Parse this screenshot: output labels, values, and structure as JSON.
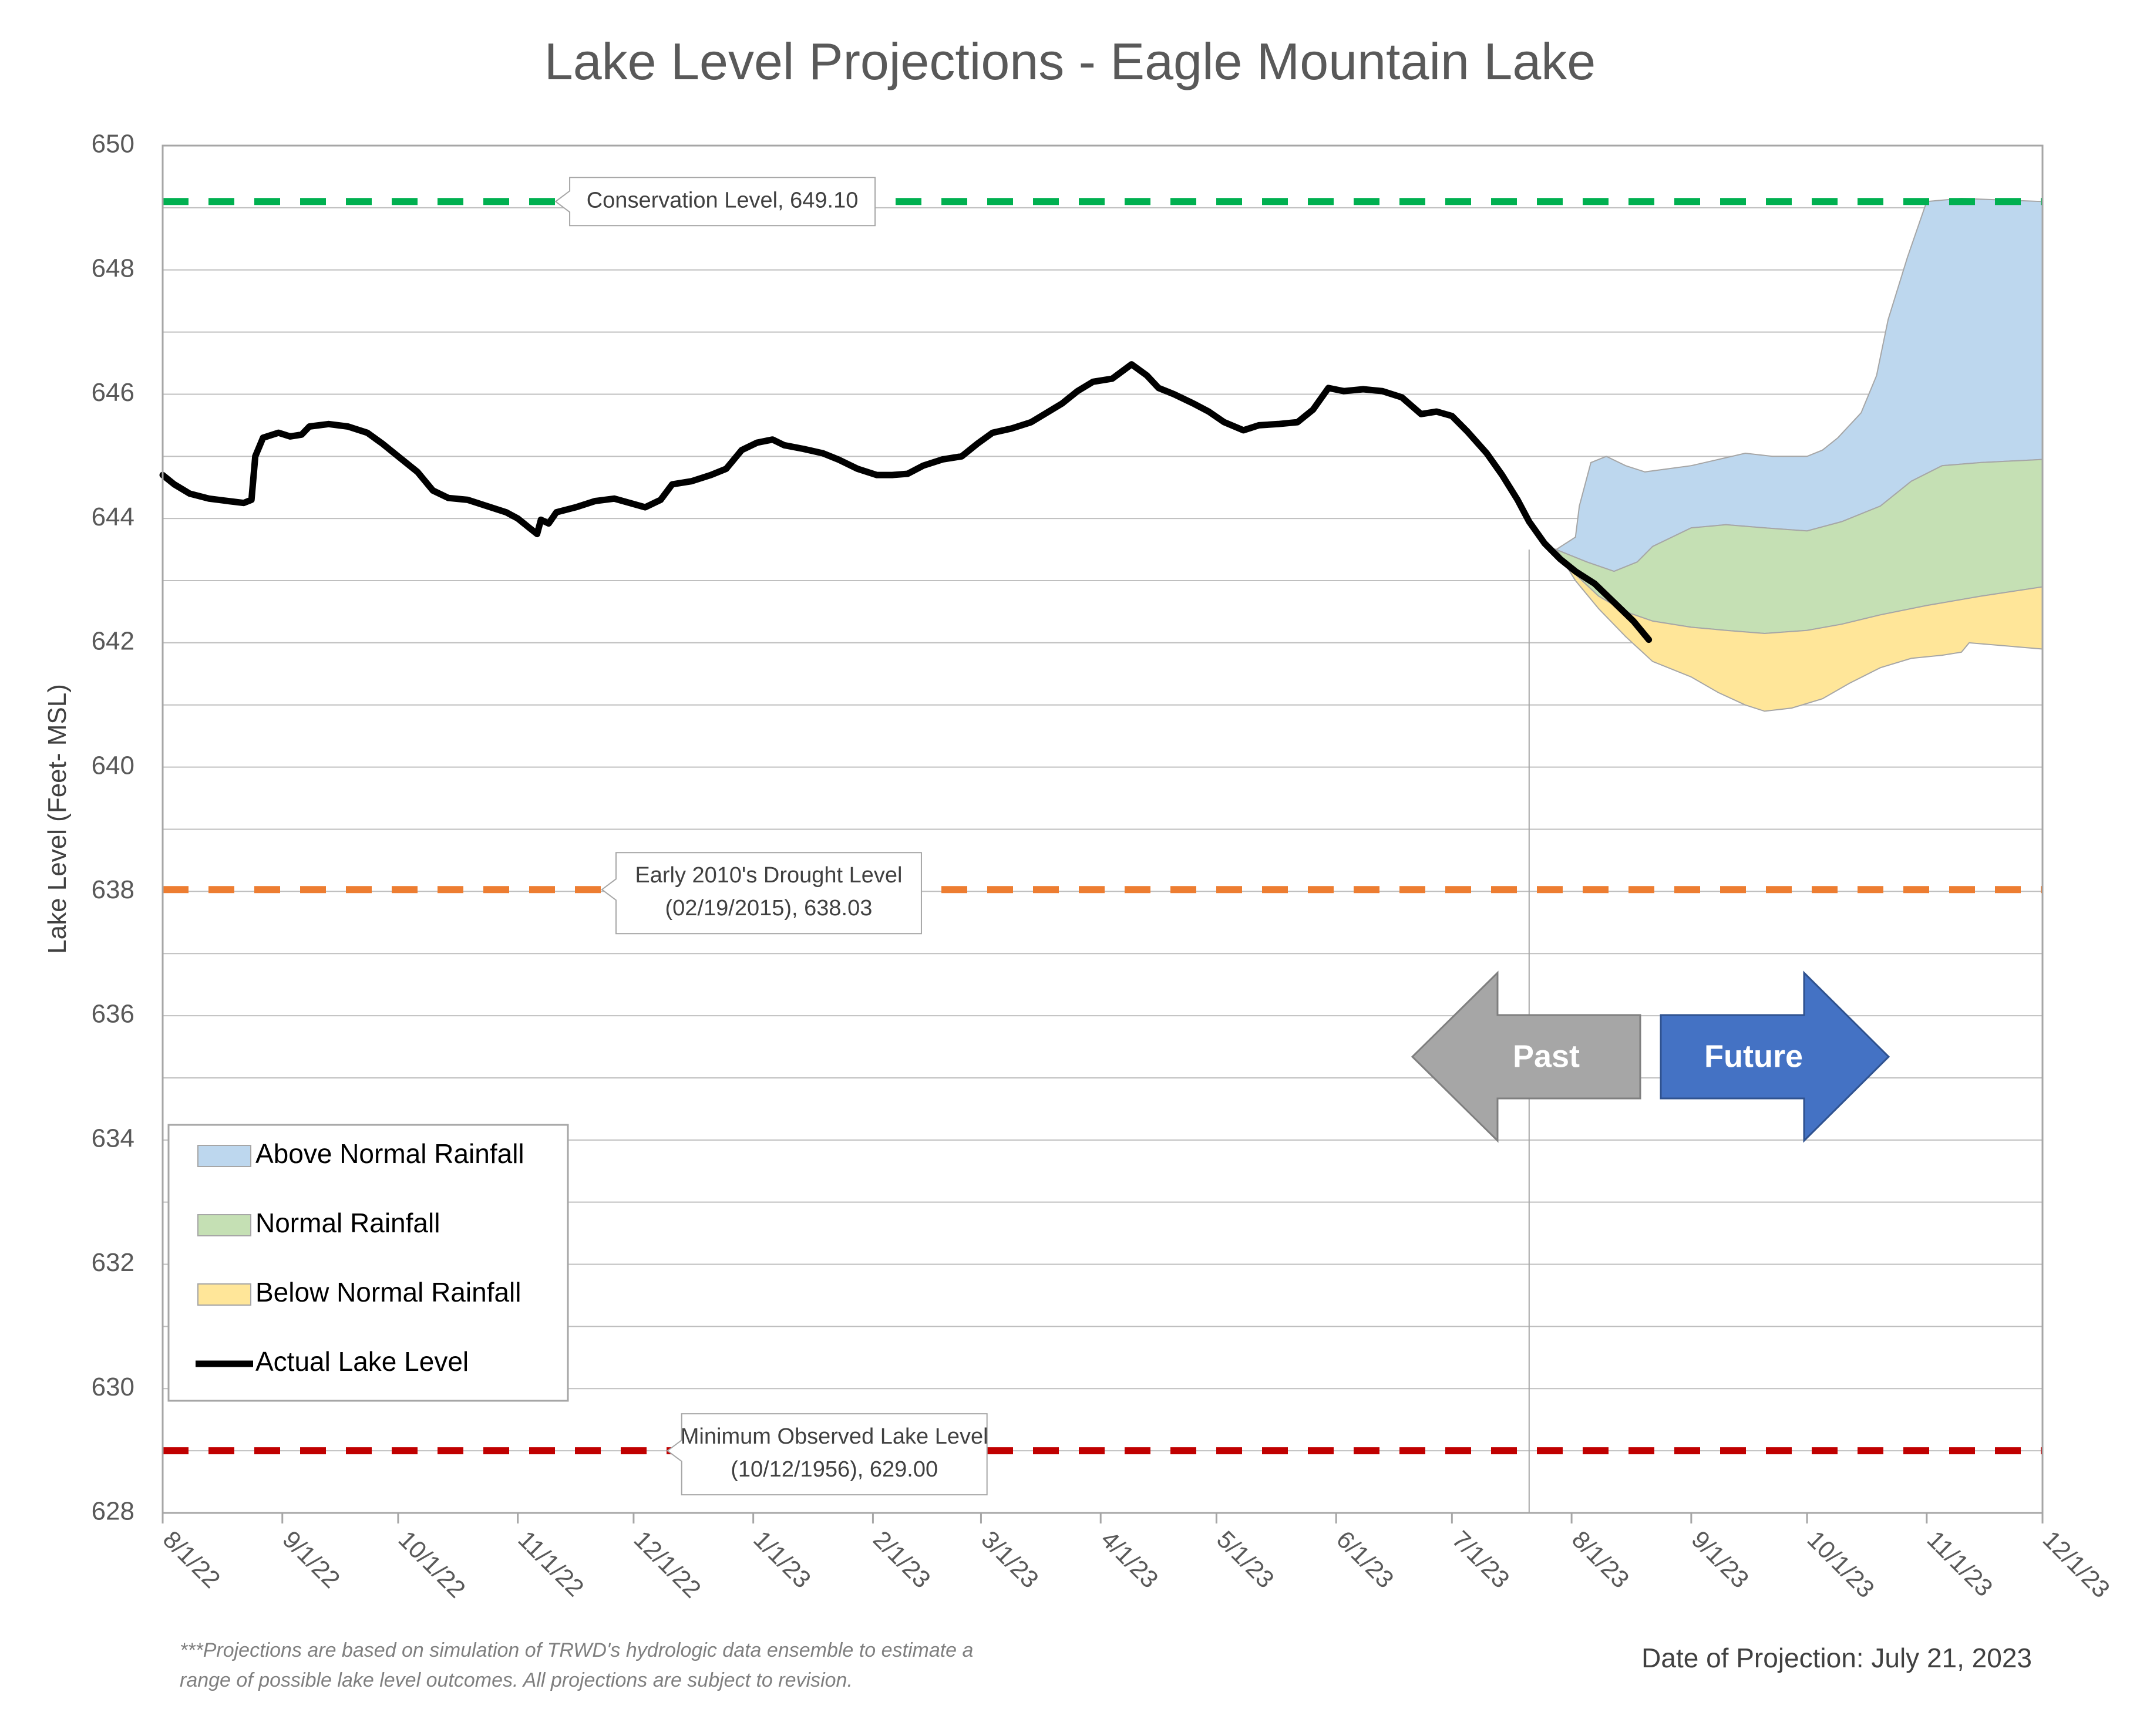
{
  "chart_data": {
    "type": "area",
    "title": "Lake Level Projections - Eagle Mountain Lake",
    "ylabel": "Lake Level (Feet- MSL)",
    "xlabel": "",
    "ylim": [
      628,
      650
    ],
    "yticks": [
      "628",
      "630",
      "632",
      "634",
      "636",
      "638",
      "640",
      "642",
      "644",
      "646",
      "648",
      "650"
    ],
    "x_start": "2022-08-01",
    "x_end": "2023-12-01",
    "xticks": [
      {
        "date": "2022-08-01",
        "label": "8/1/22"
      },
      {
        "date": "2022-09-01",
        "label": "9/1/22"
      },
      {
        "date": "2022-10-01",
        "label": "10/1/22"
      },
      {
        "date": "2022-11-01",
        "label": "11/1/22"
      },
      {
        "date": "2022-12-01",
        "label": "12/1/22"
      },
      {
        "date": "2023-01-01",
        "label": "1/1/23"
      },
      {
        "date": "2023-02-01",
        "label": "2/1/23"
      },
      {
        "date": "2023-03-01",
        "label": "3/1/23"
      },
      {
        "date": "2023-04-01",
        "label": "4/1/23"
      },
      {
        "date": "2023-05-01",
        "label": "5/1/23"
      },
      {
        "date": "2023-06-01",
        "label": "6/1/23"
      },
      {
        "date": "2023-07-01",
        "label": "7/1/23"
      },
      {
        "date": "2023-08-01",
        "label": "8/1/23"
      },
      {
        "date": "2023-09-01",
        "label": "9/1/23"
      },
      {
        "date": "2023-10-01",
        "label": "10/1/23"
      },
      {
        "date": "2023-11-01",
        "label": "11/1/23"
      },
      {
        "date": "2023-12-01",
        "label": "12/1/23"
      }
    ],
    "grid": true,
    "legend_position": "bottom-left",
    "projection_date": "2023-07-21",
    "reference_lines": [
      {
        "name": "Conservation Level",
        "value": 649.1,
        "color": "#00B050",
        "label_lines": [
          "Conservation Level, 649.10"
        ],
        "label_date": "2022-12-24"
      },
      {
        "name": "Early 2010's Drought Level",
        "value": 638.03,
        "color": "#ED7D31",
        "label_lines": [
          "Early 2010's Drought Level",
          "(02/19/2015), 638.03"
        ],
        "label_date": "2023-01-05"
      },
      {
        "name": "Minimum Observed Lake Level",
        "value": 629.0,
        "color": "#C00000",
        "label_lines": [
          "Minimum Observed Lake Level",
          "(10/12/1956), 629.00"
        ],
        "label_date": "2023-01-22"
      }
    ],
    "series": [
      {
        "name": "Actual Lake Level",
        "type": "line",
        "color": "#000000",
        "points": [
          [
            "2022-08-01",
            644.7
          ],
          [
            "2022-08-04",
            644.55
          ],
          [
            "2022-08-08",
            644.4
          ],
          [
            "2022-08-13",
            644.32
          ],
          [
            "2022-08-18",
            644.28
          ],
          [
            "2022-08-22",
            644.25
          ],
          [
            "2022-08-24",
            644.3
          ],
          [
            "2022-08-25",
            645.0
          ],
          [
            "2022-08-27",
            645.3
          ],
          [
            "2022-08-31",
            645.38
          ],
          [
            "2022-09-03",
            645.32
          ],
          [
            "2022-09-06",
            645.35
          ],
          [
            "2022-09-08",
            645.48
          ],
          [
            "2022-09-13",
            645.52
          ],
          [
            "2022-09-18",
            645.48
          ],
          [
            "2022-09-23",
            645.38
          ],
          [
            "2022-09-27",
            645.2
          ],
          [
            "2022-10-01",
            645.0
          ],
          [
            "2022-10-06",
            644.75
          ],
          [
            "2022-10-10",
            644.45
          ],
          [
            "2022-10-14",
            644.33
          ],
          [
            "2022-10-19",
            644.3
          ],
          [
            "2022-10-24",
            644.2
          ],
          [
            "2022-10-29",
            644.1
          ],
          [
            "2022-11-01",
            644.0
          ],
          [
            "2022-11-04",
            643.85
          ],
          [
            "2022-11-06",
            643.75
          ],
          [
            "2022-11-07",
            643.98
          ],
          [
            "2022-11-09",
            643.92
          ],
          [
            "2022-11-11",
            644.1
          ],
          [
            "2022-11-16",
            644.18
          ],
          [
            "2022-11-21",
            644.28
          ],
          [
            "2022-11-26",
            644.32
          ],
          [
            "2022-11-30",
            644.25
          ],
          [
            "2022-12-04",
            644.18
          ],
          [
            "2022-12-08",
            644.3
          ],
          [
            "2022-12-11",
            644.55
          ],
          [
            "2022-12-16",
            644.6
          ],
          [
            "2022-12-21",
            644.7
          ],
          [
            "2022-12-25",
            644.8
          ],
          [
            "2022-12-29",
            645.1
          ],
          [
            "2023-01-02",
            645.22
          ],
          [
            "2023-01-06",
            645.27
          ],
          [
            "2023-01-09",
            645.18
          ],
          [
            "2023-01-14",
            645.12
          ],
          [
            "2023-01-19",
            645.05
          ],
          [
            "2023-01-23",
            644.95
          ],
          [
            "2023-01-28",
            644.8
          ],
          [
            "2023-02-02",
            644.7
          ],
          [
            "2023-02-06",
            644.7
          ],
          [
            "2023-02-10",
            644.72
          ],
          [
            "2023-02-14",
            644.85
          ],
          [
            "2023-02-19",
            644.95
          ],
          [
            "2023-02-24",
            645.0
          ],
          [
            "2023-02-28",
            645.2
          ],
          [
            "2023-03-04",
            645.38
          ],
          [
            "2023-03-09",
            645.45
          ],
          [
            "2023-03-14",
            645.55
          ],
          [
            "2023-03-18",
            645.7
          ],
          [
            "2023-03-22",
            645.85
          ],
          [
            "2023-03-26",
            646.05
          ],
          [
            "2023-03-30",
            646.2
          ],
          [
            "2023-04-04",
            646.25
          ],
          [
            "2023-04-09",
            646.48
          ],
          [
            "2023-04-13",
            646.3
          ],
          [
            "2023-04-16",
            646.1
          ],
          [
            "2023-04-20",
            646.0
          ],
          [
            "2023-04-25",
            645.85
          ],
          [
            "2023-04-29",
            645.72
          ],
          [
            "2023-05-03",
            645.55
          ],
          [
            "2023-05-08",
            645.42
          ],
          [
            "2023-05-12",
            645.5
          ],
          [
            "2023-05-17",
            645.52
          ],
          [
            "2023-05-22",
            645.55
          ],
          [
            "2023-05-26",
            645.75
          ],
          [
            "2023-05-30",
            646.1
          ],
          [
            "2023-06-03",
            646.05
          ],
          [
            "2023-06-08",
            646.08
          ],
          [
            "2023-06-13",
            646.05
          ],
          [
            "2023-06-18",
            645.95
          ],
          [
            "2023-06-23",
            645.68
          ],
          [
            "2023-06-27",
            645.72
          ],
          [
            "2023-07-01",
            645.65
          ],
          [
            "2023-07-05",
            645.4
          ],
          [
            "2023-07-10",
            645.05
          ],
          [
            "2023-07-14",
            644.7
          ],
          [
            "2023-07-18",
            644.3
          ],
          [
            "2023-07-21",
            643.95
          ],
          [
            "2023-07-25",
            643.6
          ],
          [
            "2023-07-29",
            643.35
          ],
          [
            "2023-08-02",
            643.15
          ],
          [
            "2023-08-07",
            642.95
          ],
          [
            "2023-08-12",
            642.65
          ],
          [
            "2023-08-17",
            642.35
          ],
          [
            "2023-08-21",
            642.05
          ]
        ]
      },
      {
        "name": "Above Normal Rainfall",
        "type": "band",
        "color": "#BDD7EE",
        "upper": [
          [
            "2023-07-28",
            643.5
          ],
          [
            "2023-08-02",
            643.7
          ],
          [
            "2023-08-03",
            644.2
          ],
          [
            "2023-08-06",
            644.9
          ],
          [
            "2023-08-10",
            645.0
          ],
          [
            "2023-08-15",
            644.85
          ],
          [
            "2023-08-20",
            644.75
          ],
          [
            "2023-08-26",
            644.8
          ],
          [
            "2023-09-01",
            644.85
          ],
          [
            "2023-09-08",
            644.95
          ],
          [
            "2023-09-15",
            645.05
          ],
          [
            "2023-09-22",
            645.0
          ],
          [
            "2023-10-01",
            645.0
          ],
          [
            "2023-10-05",
            645.1
          ],
          [
            "2023-10-09",
            645.3
          ],
          [
            "2023-10-15",
            645.7
          ],
          [
            "2023-10-19",
            646.3
          ],
          [
            "2023-10-22",
            647.2
          ],
          [
            "2023-10-27",
            648.2
          ],
          [
            "2023-11-01",
            649.1
          ],
          [
            "2023-11-10",
            649.15
          ],
          [
            "2023-12-01",
            649.1
          ]
        ],
        "lower": [
          [
            "2023-07-28",
            643.5
          ],
          [
            "2023-08-05",
            643.3
          ],
          [
            "2023-08-12",
            643.15
          ],
          [
            "2023-08-18",
            643.3
          ],
          [
            "2023-08-22",
            643.55
          ],
          [
            "2023-09-01",
            643.85
          ],
          [
            "2023-09-10",
            643.9
          ],
          [
            "2023-09-20",
            643.85
          ],
          [
            "2023-10-01",
            643.8
          ],
          [
            "2023-10-10",
            643.95
          ],
          [
            "2023-10-20",
            644.2
          ],
          [
            "2023-10-28",
            644.6
          ],
          [
            "2023-11-05",
            644.85
          ],
          [
            "2023-11-15",
            644.9
          ],
          [
            "2023-12-01",
            644.95
          ]
        ]
      },
      {
        "name": "Normal Rainfall",
        "type": "band",
        "color": "#C5E0B4",
        "upper": [
          [
            "2023-07-28",
            643.5
          ],
          [
            "2023-08-05",
            643.3
          ],
          [
            "2023-08-12",
            643.15
          ],
          [
            "2023-08-18",
            643.3
          ],
          [
            "2023-08-22",
            643.55
          ],
          [
            "2023-09-01",
            643.85
          ],
          [
            "2023-09-10",
            643.9
          ],
          [
            "2023-09-20",
            643.85
          ],
          [
            "2023-10-01",
            643.8
          ],
          [
            "2023-10-10",
            643.95
          ],
          [
            "2023-10-20",
            644.2
          ],
          [
            "2023-10-28",
            644.6
          ],
          [
            "2023-11-05",
            644.85
          ],
          [
            "2023-11-15",
            644.9
          ],
          [
            "2023-12-01",
            644.95
          ]
        ],
        "lower": [
          [
            "2023-07-28",
            643.5
          ],
          [
            "2023-08-02",
            643.1
          ],
          [
            "2023-08-08",
            642.75
          ],
          [
            "2023-08-15",
            642.5
          ],
          [
            "2023-08-22",
            642.35
          ],
          [
            "2023-09-01",
            642.25
          ],
          [
            "2023-09-10",
            642.2
          ],
          [
            "2023-09-20",
            642.15
          ],
          [
            "2023-10-01",
            642.2
          ],
          [
            "2023-10-10",
            642.3
          ],
          [
            "2023-10-20",
            642.45
          ],
          [
            "2023-11-01",
            642.6
          ],
          [
            "2023-11-15",
            642.75
          ],
          [
            "2023-12-01",
            642.9
          ]
        ]
      },
      {
        "name": "Below Normal Rainfall",
        "type": "band",
        "color": "#FFE699",
        "upper": [
          [
            "2023-07-28",
            643.5
          ],
          [
            "2023-08-02",
            643.1
          ],
          [
            "2023-08-08",
            642.75
          ],
          [
            "2023-08-15",
            642.5
          ],
          [
            "2023-08-22",
            642.35
          ],
          [
            "2023-09-01",
            642.25
          ],
          [
            "2023-09-10",
            642.2
          ],
          [
            "2023-09-20",
            642.15
          ],
          [
            "2023-10-01",
            642.2
          ],
          [
            "2023-10-10",
            642.3
          ],
          [
            "2023-10-20",
            642.45
          ],
          [
            "2023-11-01",
            642.6
          ],
          [
            "2023-11-15",
            642.75
          ],
          [
            "2023-12-01",
            642.9
          ]
        ],
        "lower": [
          [
            "2023-07-28",
            643.5
          ],
          [
            "2023-08-02",
            643.0
          ],
          [
            "2023-08-08",
            642.55
          ],
          [
            "2023-08-15",
            642.1
          ],
          [
            "2023-08-22",
            641.7
          ],
          [
            "2023-09-01",
            641.45
          ],
          [
            "2023-09-08",
            641.2
          ],
          [
            "2023-09-15",
            641.0
          ],
          [
            "2023-09-20",
            640.9
          ],
          [
            "2023-09-27",
            640.95
          ],
          [
            "2023-10-05",
            641.1
          ],
          [
            "2023-10-12",
            641.35
          ],
          [
            "2023-10-20",
            641.6
          ],
          [
            "2023-10-28",
            641.75
          ],
          [
            "2023-11-05",
            641.8
          ],
          [
            "2023-11-10",
            641.85
          ],
          [
            "2023-11-12",
            642.0
          ],
          [
            "2023-12-01",
            641.9
          ]
        ]
      }
    ],
    "annotations": {
      "past_label": "Past",
      "future_label": "Future",
      "past_arrow_color": "#A6A6A6",
      "future_arrow_color": "#4472C4",
      "footnote_lines": [
        "***Projections are based on simulation of TRWD's hydrologic data ensemble to estimate a",
        "range of possible lake level outcomes.  All projections are subject to revision."
      ],
      "projection_date_text": "Date of Projection: July 21, 2023"
    }
  }
}
